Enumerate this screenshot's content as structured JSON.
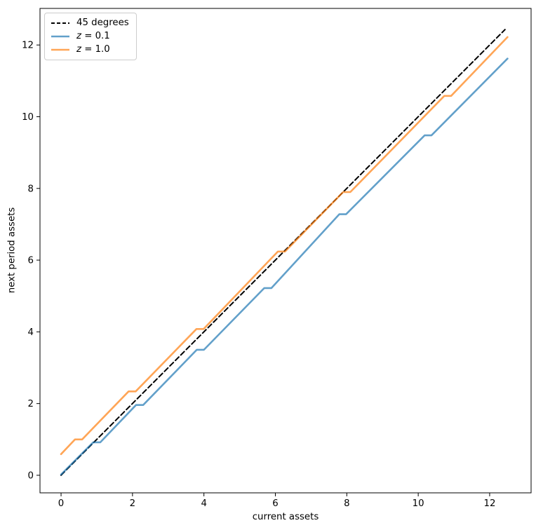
{
  "figure": {
    "background": "#ffffff"
  },
  "chart_data": {
    "type": "line",
    "title": "",
    "xlabel": "current assets",
    "ylabel": "next period assets",
    "xlim": [
      -0.59,
      13.16
    ],
    "ylim": [
      -0.49,
      13.02
    ],
    "xticks": [
      0,
      2,
      4,
      6,
      8,
      10,
      12
    ],
    "yticks": [
      0,
      2,
      4,
      6,
      8,
      10,
      12
    ],
    "grid": false,
    "legend_position": "upper-left",
    "axis_color": "#000000",
    "series": [
      {
        "name": "45 degrees",
        "color": "#000000",
        "alpha": 1,
        "style": "dashed",
        "width": 2,
        "points": [
          [
            0,
            0
          ],
          [
            12.43,
            12.43
          ]
        ]
      },
      {
        "name": "z = 0.1",
        "color": "#1f77b4",
        "alpha": 0.7,
        "style": "solid",
        "width": 2.6,
        "points": [
          [
            0,
            0.02
          ],
          [
            0.9,
            0.92
          ],
          [
            1.1,
            0.92
          ],
          [
            2.1,
            1.96
          ],
          [
            2.3,
            1.96
          ],
          [
            3.8,
            3.5
          ],
          [
            4.0,
            3.5
          ],
          [
            5.69,
            5.22
          ],
          [
            5.89,
            5.22
          ],
          [
            7.79,
            7.28
          ],
          [
            7.98,
            7.28
          ],
          [
            10.18,
            9.48
          ],
          [
            10.37,
            9.48
          ],
          [
            12.5,
            11.62
          ]
        ]
      },
      {
        "name": "z = 1.0",
        "color": "#ff7f0e",
        "alpha": 0.7,
        "style": "solid",
        "width": 2.6,
        "points": [
          [
            0,
            0.59
          ],
          [
            0.39,
            1.0
          ],
          [
            0.59,
            1.0
          ],
          [
            1.89,
            2.34
          ],
          [
            2.09,
            2.34
          ],
          [
            3.79,
            4.08
          ],
          [
            3.99,
            4.08
          ],
          [
            6.07,
            6.24
          ],
          [
            6.27,
            6.24
          ],
          [
            7.9,
            7.9
          ],
          [
            8.1,
            7.9
          ],
          [
            10.73,
            10.58
          ],
          [
            10.92,
            10.58
          ],
          [
            12.5,
            12.22
          ]
        ]
      }
    ]
  },
  "legend": {
    "items": [
      {
        "var": "",
        "rest": "45 degrees"
      },
      {
        "var": "z",
        "rest": " = 0.1"
      },
      {
        "var": "z",
        "rest": " = 1.0"
      }
    ]
  }
}
